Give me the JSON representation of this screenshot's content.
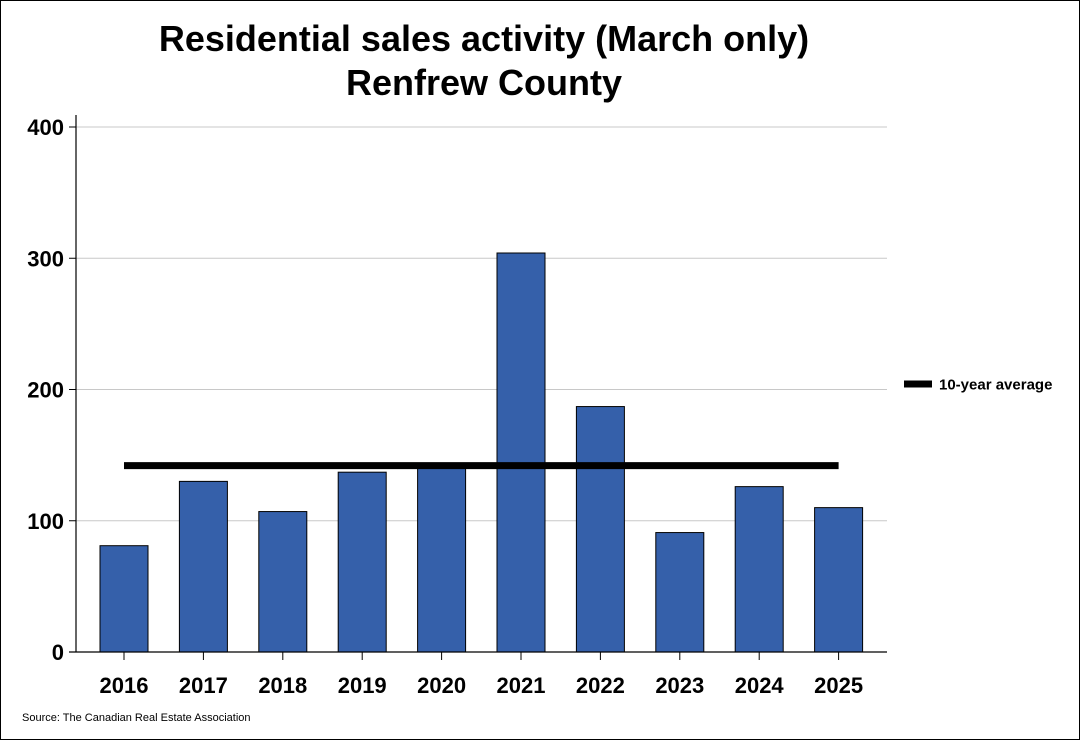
{
  "chart_data": {
    "type": "bar",
    "title": "Residential sales activity (March only)",
    "subtitle": "Renfrew County",
    "categories": [
      "2016",
      "2017",
      "2018",
      "2019",
      "2020",
      "2021",
      "2022",
      "2023",
      "2024",
      "2025"
    ],
    "values": [
      81,
      130,
      107,
      137,
      140,
      304,
      187,
      91,
      126,
      110
    ],
    "reference_line": {
      "label": "10-year average",
      "value": 142
    },
    "ylim": [
      0,
      400
    ],
    "yticks": [
      0,
      100,
      200,
      300,
      400
    ],
    "xlabel": "",
    "ylabel": "",
    "grid": true,
    "legend_position": "right",
    "bar_color": "#3560AA",
    "average_line_color": "#000000",
    "source": "Source: The Canadian Real Estate Association"
  }
}
